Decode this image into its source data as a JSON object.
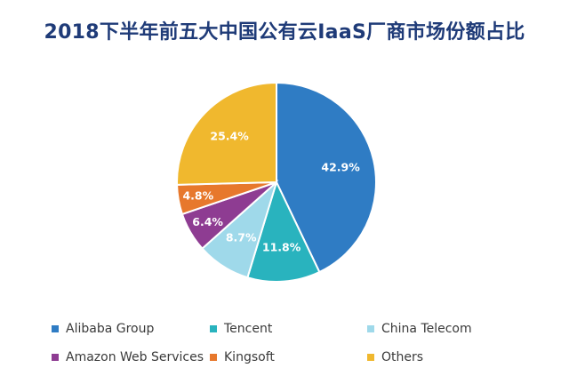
{
  "chart_data": {
    "type": "pie",
    "title": "2018下半年前五大中国公有云IaaS厂商市场份额占比",
    "slices": [
      {
        "label": "Alibaba Group",
        "value": 42.9,
        "value_label": "42.9%",
        "color": "#2f7cc4"
      },
      {
        "label": "Tencent",
        "value": 11.8,
        "value_label": "11.8%",
        "color": "#29b3be"
      },
      {
        "label": "China Telecom",
        "value": 8.7,
        "value_label": "8.7%",
        "color": "#9fd9ea"
      },
      {
        "label": "Amazon Web Services",
        "value": 6.4,
        "value_label": "6.4%",
        "color": "#8e3c92"
      },
      {
        "label": "Kingsoft",
        "value": 4.8,
        "value_label": "4.8%",
        "color": "#e7782c"
      },
      {
        "label": "Others",
        "value": 25.4,
        "value_label": "25.4%",
        "color": "#f0b82e"
      }
    ],
    "start_angle": "12 o'clock, clockwise",
    "legend_position": "bottom"
  }
}
